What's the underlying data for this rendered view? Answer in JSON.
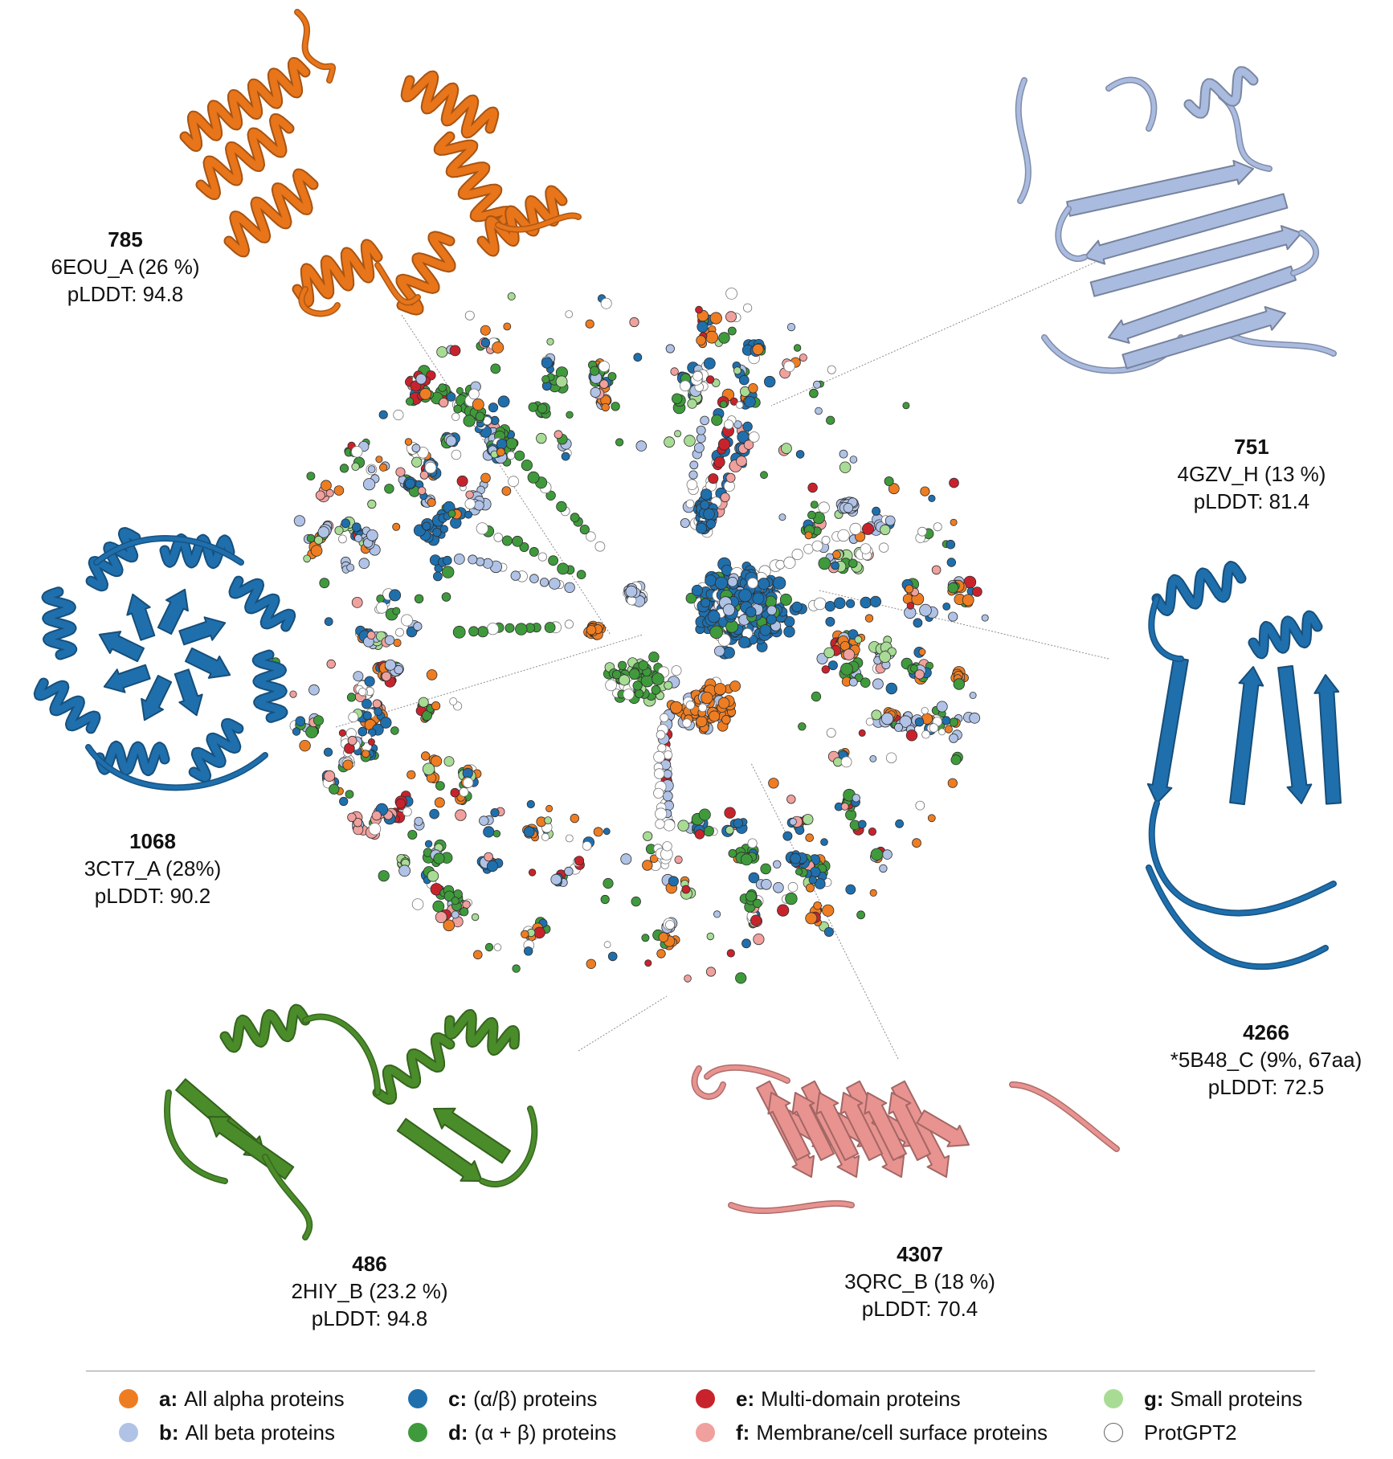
{
  "annotations": {
    "p785": {
      "id": "785",
      "pdb": "6EOU_A (26 %)",
      "plddt": "pLDDT: 94.8"
    },
    "p751": {
      "id": "751",
      "pdb": "4GZV_H (13 %)",
      "plddt": "pLDDT: 81.4"
    },
    "p1068": {
      "id": "1068",
      "pdb": "3CT7_A (28%)",
      "plddt": "pLDDT: 90.2"
    },
    "p4266": {
      "id": "4266",
      "pdb": "*5B48_C (9%, 67aa)",
      "plddt": "pLDDT: 72.5"
    },
    "p486": {
      "id": "486",
      "pdb": "2HIY_B (23.2 %)",
      "plddt": "pLDDT: 94.8"
    },
    "p4307": {
      "id": "4307",
      "pdb": "3QRC_B (18 %)",
      "plddt": "pLDDT: 70.4"
    }
  },
  "structures": {
    "p785": {
      "color": "#e8751a",
      "icon": "all-alpha-protein-structure"
    },
    "p751": {
      "color": "#aabbe0",
      "icon": "all-beta-protein-structure"
    },
    "p1068": {
      "color": "#1f6fad",
      "icon": "alpha-beta-barrel-structure"
    },
    "p4266": {
      "color": "#1f6fad",
      "icon": "alpha-beta-protein-structure"
    },
    "p486": {
      "color": "#4a8c2a",
      "icon": "alpha-plus-beta-protein-structure"
    },
    "p4307": {
      "color": "#e89390",
      "icon": "membrane-beta-barrel-structure"
    }
  },
  "legend": [
    {
      "key": "a:",
      "label": "All alpha proteins",
      "color": "#ee7d22"
    },
    {
      "key": "b:",
      "label": "All beta proteins",
      "color": "#b0c3e6"
    },
    {
      "key": "c:",
      "label": "(α/β) proteins",
      "color": "#1f6fad"
    },
    {
      "key": "d:",
      "label": "(α + β) proteins",
      "color": "#3f9a3c"
    },
    {
      "key": "e:",
      "label": "Multi-domain proteins",
      "color": "#c8232c"
    },
    {
      "key": "f:",
      "label": "Membrane/cell surface proteins",
      "color": "#f0a09d"
    },
    {
      "key": "g:",
      "label": "Small proteins",
      "color": "#a8dc95"
    },
    {
      "key": "",
      "label": "ProtGPT2",
      "color": "#ffffff"
    }
  ]
}
